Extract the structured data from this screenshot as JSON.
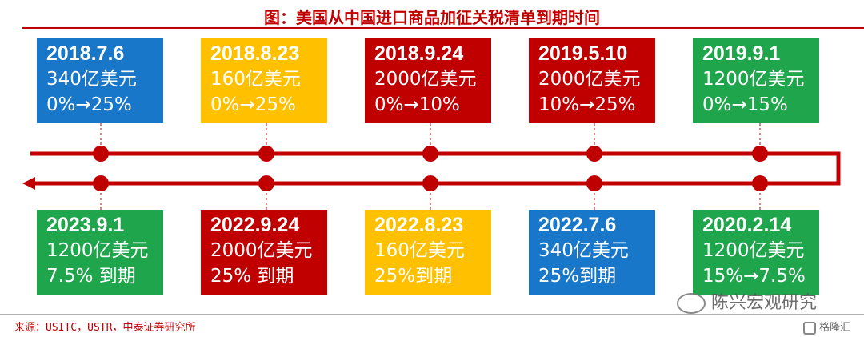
{
  "title": "图：美国从中国进口商品加征关税清单到期时间",
  "colors": {
    "blue": "#1877c9",
    "yellow": "#ffc000",
    "red": "#c00000",
    "green": "#1fa54b",
    "timeline": "#c00000"
  },
  "top_items": [
    {
      "date": "2018.7.6",
      "amount": "340亿美元",
      "rate": "0%→25%",
      "color": "blue"
    },
    {
      "date": "2018.8.23",
      "amount": "160亿美元",
      "rate": "0%→25%",
      "color": "yellow"
    },
    {
      "date": "2018.9.24",
      "amount": "2000亿美元",
      "rate": "0%→10%",
      "color": "red"
    },
    {
      "date": "2019.5.10",
      "amount": "2000亿美元",
      "rate": "10%→25%",
      "color": "red"
    },
    {
      "date": "2019.9.1",
      "amount": "1200亿美元",
      "rate": "0%→15%",
      "color": "green"
    }
  ],
  "bottom_items": [
    {
      "date": "2023.9.1",
      "amount": "1200亿美元",
      "rate": "7.5% 到期",
      "color": "green"
    },
    {
      "date": "2022.9.24",
      "amount": "2000亿美元",
      "rate": "25% 到期",
      "color": "red"
    },
    {
      "date": "2022.8.23",
      "amount": "160亿美元",
      "rate": "25%到期",
      "color": "yellow"
    },
    {
      "date": "2022.7.6",
      "amount": "340亿美元",
      "rate": "25%到期",
      "color": "blue"
    },
    {
      "date": "2020.2.14",
      "amount": "1200亿美元",
      "rate": "15%→7.5%",
      "color": "green"
    }
  ],
  "source": "来源：USITC，USTR，中泰证券研究所",
  "watermark": "陈兴宏观研究",
  "watermark_site": "格隆汇"
}
